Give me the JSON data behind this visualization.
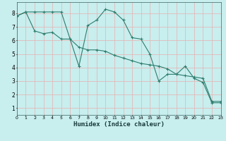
{
  "xlabel": "Humidex (Indice chaleur)",
  "ylabel": "",
  "bg_color": "#c8eeee",
  "line_color": "#2e7d6e",
  "grid_color": "#e8b0b0",
  "line1_x": [
    0,
    1,
    2,
    3,
    4,
    5,
    6,
    7,
    8,
    9,
    10,
    11,
    12,
    13,
    14,
    15,
    16,
    17,
    18,
    19,
    20,
    21,
    22,
    23
  ],
  "line1_y": [
    7.8,
    8.1,
    8.1,
    8.1,
    8.1,
    8.1,
    6.1,
    4.1,
    7.1,
    7.5,
    8.3,
    8.1,
    7.5,
    6.2,
    6.1,
    5.0,
    3.0,
    3.5,
    3.5,
    4.1,
    3.2,
    2.9,
    1.4,
    1.4
  ],
  "line2_x": [
    0,
    1,
    2,
    3,
    4,
    5,
    6,
    7,
    8,
    9,
    10,
    11,
    12,
    13,
    14,
    15,
    16,
    17,
    18,
    19,
    20,
    21,
    22,
    23
  ],
  "line2_y": [
    7.8,
    8.1,
    6.7,
    6.5,
    6.6,
    6.1,
    6.1,
    5.5,
    5.3,
    5.3,
    5.2,
    4.9,
    4.7,
    4.5,
    4.3,
    4.2,
    4.1,
    3.9,
    3.5,
    3.4,
    3.3,
    3.2,
    1.5,
    1.5
  ],
  "xlim": [
    0,
    23
  ],
  "ylim": [
    0.5,
    8.8
  ],
  "yticks": [
    1,
    2,
    3,
    4,
    5,
    6,
    7,
    8
  ],
  "xticks": [
    0,
    1,
    2,
    3,
    4,
    5,
    6,
    7,
    8,
    9,
    10,
    11,
    12,
    13,
    14,
    15,
    16,
    17,
    18,
    19,
    20,
    21,
    22,
    23
  ]
}
